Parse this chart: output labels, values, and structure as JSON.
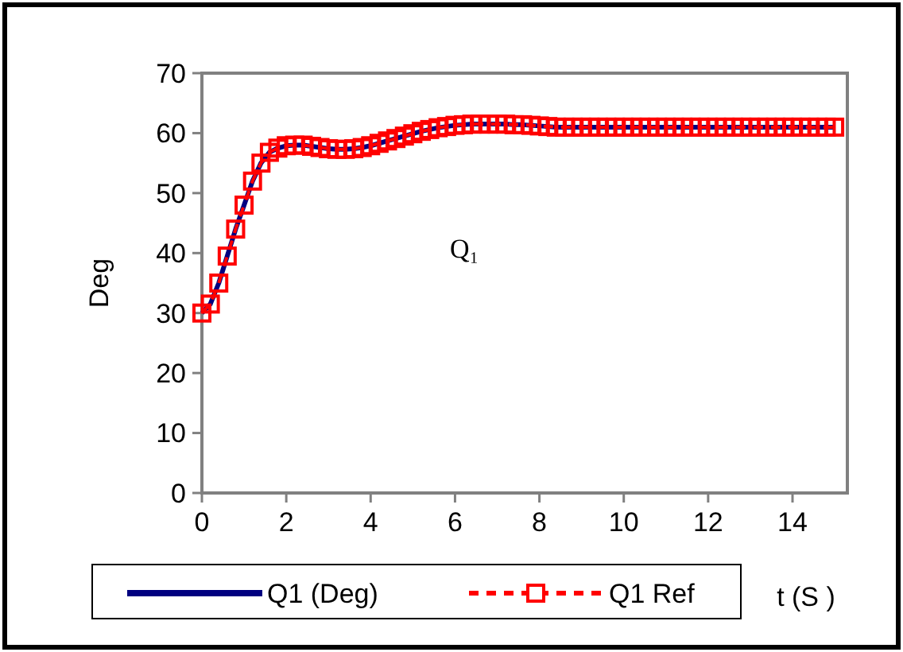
{
  "chart_data": {
    "type": "line",
    "xlabel": "t (S )",
    "ylabel": "Deg",
    "x": [
      0,
      0.2,
      0.4,
      0.6,
      0.8,
      1,
      1.2,
      1.4,
      1.6,
      1.8,
      2,
      2.2,
      2.4,
      2.6,
      2.8,
      3,
      3.2,
      3.4,
      3.6,
      3.8,
      4,
      4.2,
      4.4,
      4.6,
      4.8,
      5,
      5.2,
      5.4,
      5.6,
      5.8,
      6,
      6.2,
      6.4,
      6.6,
      6.8,
      7,
      7.2,
      7.4,
      7.6,
      7.8,
      8,
      8.2,
      8.4,
      8.6,
      8.8,
      9,
      9.2,
      9.4,
      9.6,
      9.8,
      10,
      10.2,
      10.4,
      10.6,
      10.8,
      11,
      11.2,
      11.4,
      11.6,
      11.8,
      12,
      12.2,
      12.4,
      12.6,
      12.8,
      13,
      13.2,
      13.4,
      13.6,
      13.8,
      14,
      14.2,
      14.4,
      14.6,
      14.8,
      15
    ],
    "series": [
      {
        "name": "Q1 (Deg)",
        "color": "#000080",
        "marker": "none",
        "line_style": "solid",
        "values": [
          30,
          31.5,
          35,
          39.5,
          44,
          48,
          52,
          55,
          56.8,
          57.5,
          57.9,
          58,
          58,
          57.8,
          57.6,
          57.4,
          57.3,
          57.3,
          57.4,
          57.6,
          57.9,
          58.3,
          58.7,
          59.1,
          59.5,
          59.9,
          60.3,
          60.6,
          60.9,
          61.1,
          61.3,
          61.4,
          61.5,
          61.5,
          61.5,
          61.5,
          61.5,
          61.4,
          61.4,
          61.3,
          61.2,
          61.1,
          61,
          61,
          61,
          61,
          61,
          61,
          61,
          61,
          61,
          61,
          61,
          61,
          61,
          61,
          61,
          61,
          61,
          61,
          61,
          61,
          61,
          61,
          61,
          61,
          61,
          61,
          61,
          61,
          61,
          61,
          61,
          61,
          61,
          61
        ]
      },
      {
        "name": "Q1 Ref",
        "color": "#ff0000",
        "marker": "square",
        "line_style": "dashed",
        "values": [
          30,
          31.5,
          35,
          39.5,
          44,
          48,
          52,
          55,
          56.8,
          57.5,
          57.9,
          58,
          58,
          57.8,
          57.6,
          57.4,
          57.3,
          57.3,
          57.4,
          57.6,
          57.9,
          58.3,
          58.7,
          59.1,
          59.5,
          59.9,
          60.3,
          60.6,
          60.9,
          61.1,
          61.3,
          61.4,
          61.5,
          61.5,
          61.5,
          61.5,
          61.5,
          61.4,
          61.4,
          61.3,
          61.2,
          61.1,
          61,
          61,
          61,
          61,
          61,
          61,
          61,
          61,
          61,
          61,
          61,
          61,
          61,
          61,
          61,
          61,
          61,
          61,
          61,
          61,
          61,
          61,
          61,
          61,
          61,
          61,
          61,
          61,
          61,
          61,
          61,
          61,
          61,
          61
        ]
      }
    ],
    "xlim": [
      0,
      15.3
    ],
    "xticks": [
      0,
      2,
      4,
      6,
      8,
      10,
      12,
      14
    ],
    "ylim": [
      0,
      70
    ],
    "yticks": [
      0,
      10,
      20,
      30,
      40,
      50,
      60,
      70
    ],
    "grid": false,
    "legend": "bottom",
    "annotations": [
      "Q₁"
    ]
  }
}
